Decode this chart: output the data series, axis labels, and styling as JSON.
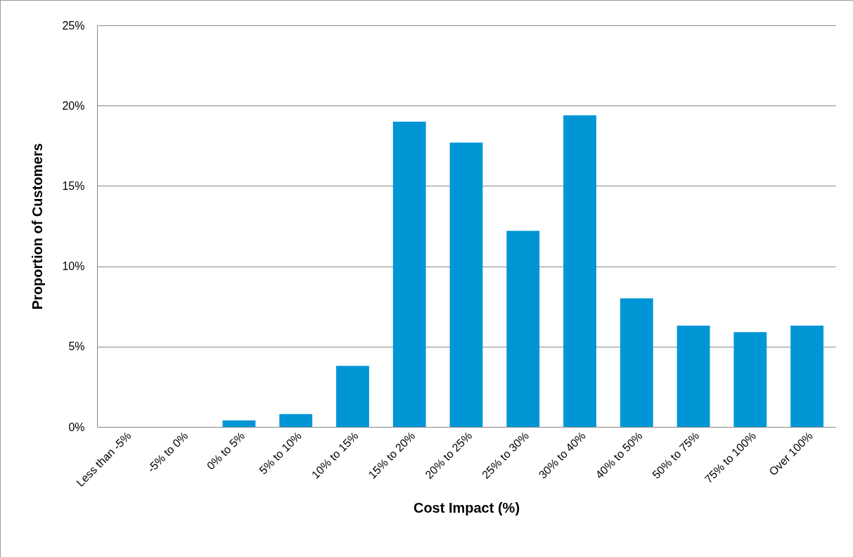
{
  "chart_data": {
    "type": "bar",
    "xlabel": "Cost Impact (%)",
    "ylabel": "Proportion of Customers",
    "categories": [
      "Less than -5%",
      "-5% to 0%",
      "0% to 5%",
      "5% to 10%",
      "10% to 15%",
      "15% to 20%",
      "20% to 25%",
      "25% to 30%",
      "30% to 40%",
      "40% to 50%",
      "50% to 75%",
      "75% to 100%",
      "Over 100%"
    ],
    "values": [
      0,
      0,
      0.4,
      0.8,
      3.8,
      19.0,
      17.7,
      12.2,
      19.4,
      8.0,
      6.3,
      5.9,
      6.3
    ],
    "color": "#0096d6",
    "ylim": [
      0,
      25
    ],
    "yticks": [
      {
        "value": 0,
        "label": "0%"
      },
      {
        "value": 5,
        "label": "5%"
      },
      {
        "value": 10,
        "label": "10%"
      },
      {
        "value": 15,
        "label": "15%"
      },
      {
        "value": 20,
        "label": "20%"
      },
      {
        "value": 25,
        "label": "25%"
      }
    ],
    "grid": "y"
  }
}
